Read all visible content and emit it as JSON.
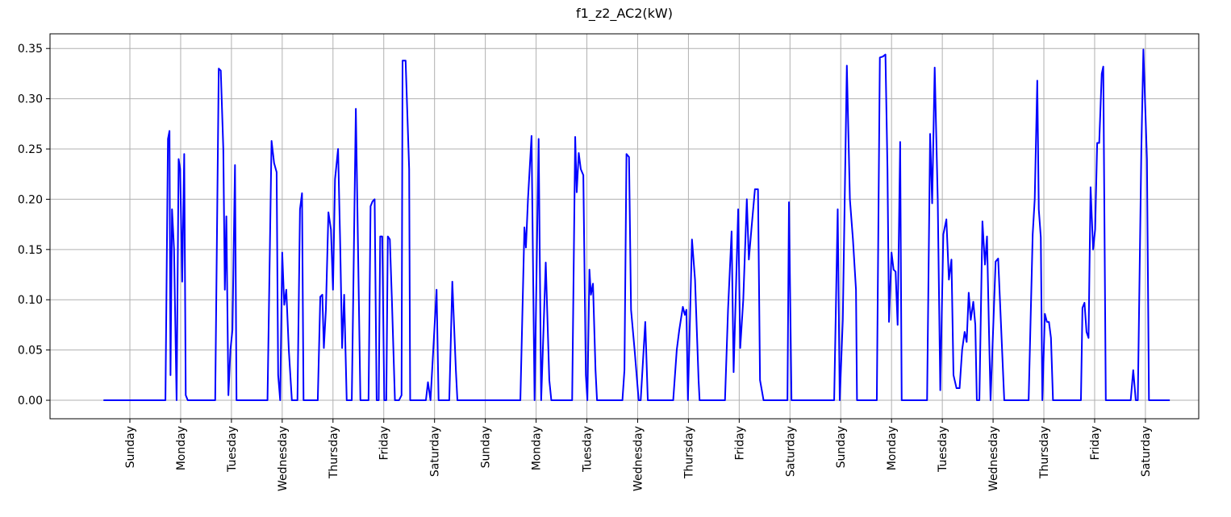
{
  "chart_data": {
    "type": "line",
    "title": "f1_z2_AC2(kW)",
    "color": "#0000ff",
    "grid": true,
    "x": [
      -0.52,
      0.7,
      0.75,
      0.78,
      0.8,
      0.83,
      0.87,
      0.92,
      0.96,
      0.99,
      1.03,
      1.07,
      1.1,
      1.14,
      1.68,
      1.75,
      1.79,
      1.84,
      1.87,
      1.9,
      1.94,
      1.98,
      2.02,
      2.07,
      2.1,
      2.71,
      2.79,
      2.84,
      2.89,
      2.92,
      2.96,
      3.0,
      3.04,
      3.08,
      3.13,
      3.19,
      3.3,
      3.35,
      3.39,
      3.42,
      3.7,
      3.75,
      3.79,
      3.82,
      3.86,
      3.91,
      3.96,
      4.0,
      4.04,
      4.1,
      4.14,
      4.18,
      4.22,
      4.27,
      4.37,
      4.45,
      4.54,
      4.7,
      4.74,
      4.78,
      4.82,
      4.86,
      4.9,
      4.93,
      4.97,
      5.01,
      5.05,
      5.08,
      5.12,
      5.16,
      5.22,
      5.3,
      5.35,
      5.37,
      5.43,
      5.5,
      5.52,
      5.83,
      5.87,
      5.92,
      6.04,
      6.08,
      6.29,
      6.35,
      6.42,
      6.45,
      7.69,
      7.77,
      7.8,
      7.84,
      7.91,
      7.97,
      8.05,
      8.1,
      8.19,
      8.26,
      8.3,
      8.71,
      8.77,
      8.8,
      8.84,
      8.88,
      8.93,
      8.98,
      9.01,
      9.05,
      9.08,
      9.12,
      9.17,
      9.2,
      9.7,
      9.74,
      9.78,
      9.83,
      9.87,
      9.94,
      10.02,
      10.06,
      10.15,
      10.2,
      10.7,
      10.77,
      10.82,
      10.89,
      10.93,
      10.96,
      10.99,
      11.07,
      11.13,
      11.2,
      11.22,
      11.72,
      11.78,
      11.85,
      11.89,
      11.93,
      11.98,
      12.02,
      12.08,
      12.15,
      12.19,
      12.24,
      12.31,
      12.37,
      12.41,
      12.48,
      12.95,
      12.98,
      13.03,
      13.87,
      13.94,
      13.98,
      14.04,
      14.12,
      14.18,
      14.24,
      14.3,
      14.32,
      14.71,
      14.77,
      14.83,
      14.88,
      14.92,
      14.95,
      15.0,
      15.04,
      15.08,
      15.12,
      15.17,
      15.2,
      15.7,
      15.76,
      15.8,
      15.85,
      15.91,
      15.96,
      16.02,
      16.08,
      16.13,
      16.18,
      16.22,
      16.28,
      16.34,
      16.39,
      16.44,
      16.48,
      16.52,
      16.56,
      16.61,
      16.65,
      16.68,
      16.73,
      16.79,
      16.84,
      16.88,
      16.92,
      16.95,
      17.05,
      17.1,
      17.22,
      17.7,
      17.78,
      17.82,
      17.87,
      17.9,
      17.94,
      17.97,
      18.02,
      18.06,
      18.1,
      18.14,
      18.18,
      18.73,
      18.76,
      18.8,
      18.84,
      18.88,
      18.92,
      18.97,
      19.01,
      19.05,
      19.09,
      19.14,
      19.17,
      19.22,
      19.71,
      19.76,
      19.81,
      19.85,
      19.92,
      19.96,
      20.03,
      20.07,
      20.48
    ],
    "values": [
      0,
      0,
      0.26,
      0.268,
      0.025,
      0.19,
      0.15,
      0,
      0.24,
      0.23,
      0.118,
      0.245,
      0.005,
      0,
      0,
      0.33,
      0.328,
      0.25,
      0.11,
      0.183,
      0.005,
      0.05,
      0.07,
      0.234,
      0,
      0,
      0.258,
      0.236,
      0.227,
      0.025,
      0,
      0.147,
      0.095,
      0.11,
      0.05,
      0,
      0,
      0.19,
      0.206,
      0,
      0,
      0.103,
      0.105,
      0.052,
      0.09,
      0.187,
      0.17,
      0.11,
      0.22,
      0.25,
      0.16,
      0.052,
      0.105,
      0,
      0,
      0.29,
      0,
      0,
      0.193,
      0.198,
      0.2,
      0,
      0,
      0.163,
      0.163,
      0,
      0,
      0.163,
      0.16,
      0.1,
      0,
      0,
      0.005,
      0.338,
      0.338,
      0.23,
      0,
      0,
      0.018,
      0,
      0.11,
      0,
      0,
      0.118,
      0.03,
      0,
      0,
      0.172,
      0.152,
      0.2,
      0.263,
      0,
      0.26,
      0,
      0.137,
      0.02,
      0,
      0,
      0.262,
      0.207,
      0.246,
      0.23,
      0.224,
      0.025,
      0,
      0.13,
      0.105,
      0.116,
      0.03,
      0,
      0,
      0.03,
      0.245,
      0.242,
      0.09,
      0.05,
      0,
      0,
      0.078,
      0,
      0,
      0.05,
      0.07,
      0.093,
      0.085,
      0.09,
      0,
      0.16,
      0.12,
      0.02,
      0,
      0,
      0.09,
      0.168,
      0.028,
      0.1,
      0.19,
      0.052,
      0.1,
      0.2,
      0.14,
      0.17,
      0.21,
      0.21,
      0.02,
      0,
      0,
      0.197,
      0,
      0,
      0.19,
      0,
      0.08,
      0.333,
      0.2,
      0.16,
      0.11,
      0,
      0,
      0.341,
      0.342,
      0.344,
      0.23,
      0.078,
      0.147,
      0.13,
      0.128,
      0.075,
      0.257,
      0,
      0,
      0.265,
      0.196,
      0.331,
      0.2,
      0.01,
      0.165,
      0.18,
      0.12,
      0.14,
      0.025,
      0.012,
      0.012,
      0.05,
      0.068,
      0.058,
      0.107,
      0.08,
      0.098,
      0.075,
      0,
      0,
      0.178,
      0.135,
      0.163,
      0.067,
      0,
      0.138,
      0.141,
      0,
      0,
      0.165,
      0.2,
      0.318,
      0.19,
      0.162,
      0,
      0.086,
      0.078,
      0.078,
      0.062,
      0,
      0,
      0.092,
      0.097,
      0.068,
      0.062,
      0.212,
      0.15,
      0.17,
      0.256,
      0.256,
      0.325,
      0.332,
      0,
      0,
      0.03,
      0,
      0,
      0.25,
      0.349,
      0.24,
      0,
      0
    ],
    "xlim": [
      -1.573,
      21.05
    ],
    "ylim": [
      -0.0184,
      0.3646
    ],
    "xticks": [
      {
        "value": 0,
        "label": "Sunday"
      },
      {
        "value": 1,
        "label": "Monday"
      },
      {
        "value": 2,
        "label": "Tuesday"
      },
      {
        "value": 3,
        "label": "Wednesday"
      },
      {
        "value": 4,
        "label": "Thursday"
      },
      {
        "value": 5,
        "label": "Friday"
      },
      {
        "value": 6,
        "label": "Saturday"
      },
      {
        "value": 7,
        "label": "Sunday"
      },
      {
        "value": 8,
        "label": "Monday"
      },
      {
        "value": 9,
        "label": "Tuesday"
      },
      {
        "value": 10,
        "label": "Wednesday"
      },
      {
        "value": 11,
        "label": "Thursday"
      },
      {
        "value": 12,
        "label": "Friday"
      },
      {
        "value": 13,
        "label": "Saturday"
      },
      {
        "value": 14,
        "label": "Sunday"
      },
      {
        "value": 15,
        "label": "Monday"
      },
      {
        "value": 16,
        "label": "Tuesday"
      },
      {
        "value": 17,
        "label": "Wednesday"
      },
      {
        "value": 18,
        "label": "Thursday"
      },
      {
        "value": 19,
        "label": "Friday"
      },
      {
        "value": 20,
        "label": "Saturday"
      }
    ],
    "yticks": [
      {
        "value": 0,
        "label": "0.00"
      },
      {
        "value": 0.05,
        "label": "0.05"
      },
      {
        "value": 0.1,
        "label": "0.10"
      },
      {
        "value": 0.15,
        "label": "0.15"
      },
      {
        "value": 0.2,
        "label": "0.20"
      },
      {
        "value": 0.25,
        "label": "0.25"
      },
      {
        "value": 0.3,
        "label": "0.30"
      },
      {
        "value": 0.35,
        "label": "0.35"
      }
    ]
  }
}
